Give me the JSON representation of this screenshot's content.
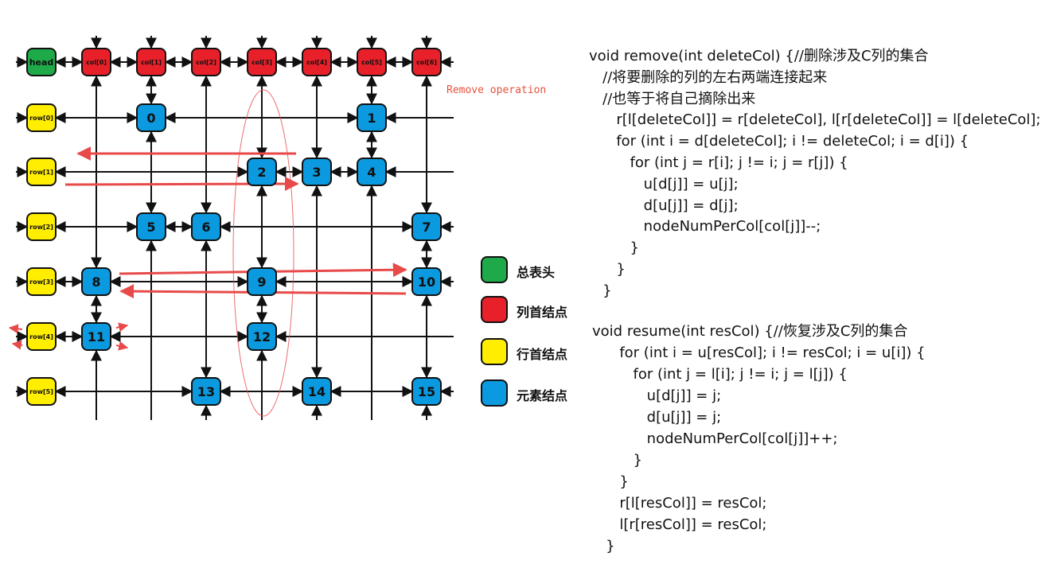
{
  "colors": {
    "head": "#1faa4a",
    "column": "#e8202a",
    "row": "#ffee00",
    "element": "#0b9ae0",
    "link": "#111111",
    "highlight_arrow": "#e84a4a",
    "annotation": "#e8523a"
  },
  "diagram": {
    "head_label": "head",
    "col_labels": [
      "col[0]",
      "col[1]",
      "col[2]",
      "col[3]",
      "col[4]",
      "col[5]",
      "col[6]"
    ],
    "row_labels": [
      "row[0]",
      "row[1]",
      "row[2]",
      "row[3]",
      "row[4]",
      "row[5]"
    ],
    "elements": [
      {
        "label": "0",
        "row": 0,
        "col": 1
      },
      {
        "label": "1",
        "row": 0,
        "col": 5
      },
      {
        "label": "2",
        "row": 1,
        "col": 3
      },
      {
        "label": "3",
        "row": 1,
        "col": 4
      },
      {
        "label": "4",
        "row": 1,
        "col": 5
      },
      {
        "label": "5",
        "row": 2,
        "col": 1
      },
      {
        "label": "6",
        "row": 2,
        "col": 2
      },
      {
        "label": "7",
        "row": 2,
        "col": 6
      },
      {
        "label": "8",
        "row": 3,
        "col": 0
      },
      {
        "label": "9",
        "row": 3,
        "col": 3
      },
      {
        "label": "10",
        "row": 3,
        "col": 6
      },
      {
        "label": "11",
        "row": 4,
        "col": 0
      },
      {
        "label": "12",
        "row": 4,
        "col": 3
      },
      {
        "label": "13",
        "row": 5,
        "col": 2
      },
      {
        "label": "14",
        "row": 5,
        "col": 4
      },
      {
        "label": "15",
        "row": 5,
        "col": 6
      }
    ],
    "annotation": "Remove operation"
  },
  "legend": [
    {
      "label": "总表头",
      "color": "#1faa4a",
      "icon": "green-square-icon"
    },
    {
      "label": "列首结点",
      "color": "#e8202a",
      "icon": "red-square-icon"
    },
    {
      "label": "行首结点",
      "color": "#ffee00",
      "icon": "yellow-square-icon"
    },
    {
      "label": "元素结点",
      "color": "#0b9ae0",
      "icon": "blue-square-icon"
    }
  ],
  "code": {
    "remove": [
      "void remove(int deleteCol) {//删除涉及C列的集合",
      "   //将要删除的列的左右两端连接起来",
      "   //也等于将自己摘除出来",
      "      r[l[deleteCol]] = r[deleteCol], l[r[deleteCol]] = l[deleteCol];",
      "      for (int i = d[deleteCol]; i != deleteCol; i = d[i]) {",
      "         for (int j = r[i]; j != i; j = r[j]) {",
      "            u[d[j]] = u[j];",
      "            d[u[j]] = d[j];",
      "            nodeNumPerCol[col[j]]--;",
      "         }",
      "      }",
      "   }"
    ],
    "resume": [
      "void resume(int resCol) {//恢复涉及C列的集合",
      "      for (int i = u[resCol]; i != resCol; i = u[i]) {",
      "         for (int j = l[i]; j != i; j = l[j]) {",
      "            u[d[j]] = j;",
      "            d[u[j]] = j;",
      "            nodeNumPerCol[col[j]]++;",
      "         }",
      "      }",
      "      r[l[resCol]] = resCol;",
      "      l[r[resCol]] = resCol;",
      "   }"
    ]
  }
}
